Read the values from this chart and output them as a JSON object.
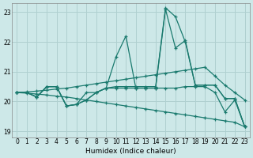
{
  "xlabel": "Humidex (Indice chaleur)",
  "xlim": [
    -0.5,
    23.5
  ],
  "ylim": [
    18.8,
    23.3
  ],
  "yticks": [
    19,
    20,
    21,
    22,
    23
  ],
  "xticks": [
    0,
    1,
    2,
    3,
    4,
    5,
    6,
    7,
    8,
    9,
    10,
    11,
    12,
    13,
    14,
    15,
    16,
    17,
    18,
    19,
    20,
    21,
    22,
    23
  ],
  "bg_color": "#cde8e8",
  "grid_color": "#b0d0d0",
  "line_color": "#1a7a6e",
  "line1": [
    20.3,
    20.3,
    20.15,
    20.5,
    20.5,
    19.85,
    19.9,
    20.05,
    20.3,
    20.45,
    21.5,
    22.2,
    20.45,
    20.45,
    20.45,
    23.1,
    21.8,
    22.05,
    20.55,
    20.55,
    20.55,
    20.1,
    20.1,
    19.15
  ],
  "line2": [
    20.3,
    20.3,
    20.15,
    20.5,
    20.5,
    19.85,
    19.9,
    20.05,
    20.3,
    20.45,
    20.5,
    20.5,
    20.5,
    20.5,
    20.5,
    23.15,
    22.85,
    22.0,
    20.55,
    20.55,
    20.55,
    20.1,
    20.1,
    19.15
  ],
  "line3": [
    20.3,
    20.3,
    20.15,
    20.5,
    20.5,
    19.85,
    19.9,
    20.3,
    20.3,
    20.45,
    20.45,
    20.45,
    20.45,
    20.45,
    20.45,
    20.45,
    20.45,
    20.5,
    20.5,
    20.5,
    20.3,
    19.65,
    20.05,
    19.15
  ],
  "line4": [
    20.3,
    20.32,
    20.35,
    20.38,
    20.42,
    20.45,
    20.5,
    20.55,
    20.6,
    20.65,
    20.7,
    20.75,
    20.8,
    20.85,
    20.9,
    20.95,
    21.0,
    21.05,
    21.1,
    21.15,
    20.85,
    20.55,
    20.3,
    20.05
  ],
  "line5": [
    20.3,
    20.28,
    20.25,
    20.22,
    20.18,
    20.15,
    20.1,
    20.05,
    20.0,
    19.95,
    19.9,
    19.85,
    19.8,
    19.75,
    19.7,
    19.65,
    19.6,
    19.55,
    19.5,
    19.45,
    19.4,
    19.35,
    19.3,
    19.15
  ]
}
